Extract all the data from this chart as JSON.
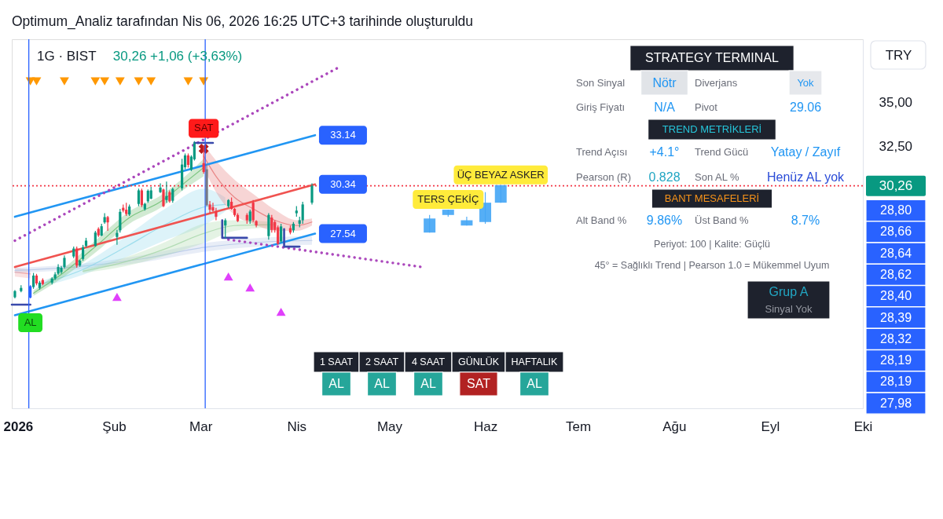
{
  "chart_data": {
    "type": "candlestick",
    "title": "Optimum_Analiz tarafından Nis 06, 2026 16:25 UTC+3 tarihinde oluşturuldu",
    "subtitle": "1G · BIST",
    "ylabel": "TRY",
    "x": [
      "2025-12-31",
      "2026-01-02",
      "2026-01-05",
      "2026-01-06",
      "2026-01-07",
      "2026-01-08",
      "2026-01-09",
      "2026-01-12",
      "2026-01-13",
      "2026-01-14",
      "2026-01-15",
      "2026-01-16",
      "2026-01-19",
      "2026-01-20",
      "2026-01-21",
      "2026-01-22",
      "2026-01-23",
      "2026-01-26",
      "2026-01-27",
      "2026-01-28",
      "2026-01-29",
      "2026-01-30",
      "2026-02-02",
      "2026-02-03",
      "2026-02-04",
      "2026-02-05",
      "2026-02-06",
      "2026-02-09",
      "2026-02-10",
      "2026-02-11",
      "2026-02-12",
      "2026-02-13",
      "2026-02-16",
      "2026-02-17",
      "2026-02-18",
      "2026-02-19",
      "2026-02-20",
      "2026-02-23",
      "2026-02-24",
      "2026-02-25",
      "2026-02-26",
      "2026-02-27",
      "2026-03-02",
      "2026-03-03",
      "2026-03-04",
      "2026-03-05",
      "2026-03-06",
      "2026-03-09",
      "2026-03-10",
      "2026-03-11",
      "2026-03-12",
      "2026-03-13",
      "2026-03-16",
      "2026-03-17",
      "2026-03-18",
      "2026-03-19",
      "2026-03-23",
      "2026-03-24",
      "2026-03-25",
      "2026-03-26",
      "2026-03-27",
      "2026-03-30",
      "2026-03-31",
      "2026-04-01",
      "2026-04-02",
      "2026-04-03",
      "2026-04-06"
    ],
    "ohlc": [
      [
        23.92,
        24.32,
        23.85,
        24.27
      ],
      [
        24.27,
        24.6,
        24.2,
        24.45
      ],
      [
        24.55,
        24.6,
        23.85,
        23.9
      ],
      [
        24.5,
        25.3,
        24.4,
        25.15
      ],
      [
        25.15,
        25.25,
        24.6,
        24.7
      ],
      [
        24.45,
        24.85,
        24.35,
        24.75
      ],
      [
        24.9,
        25.0,
        24.6,
        24.67
      ],
      [
        24.75,
        25.05,
        24.65,
        24.98
      ],
      [
        24.99,
        25.35,
        24.9,
        25.22
      ],
      [
        25.27,
        25.8,
        25.2,
        25.64
      ],
      [
        25.35,
        25.7,
        25.25,
        25.6
      ],
      [
        25.64,
        26.3,
        25.55,
        26.16
      ],
      [
        26.24,
        26.8,
        26.15,
        26.69
      ],
      [
        26.69,
        26.8,
        25.6,
        25.72
      ],
      [
        25.72,
        26.05,
        25.65,
        26.0
      ],
      [
        26.1,
        26.9,
        26.0,
        26.76
      ],
      [
        26.84,
        27.3,
        26.75,
        27.14
      ],
      [
        26.84,
        27.7,
        26.8,
        27.6
      ],
      [
        27.81,
        27.9,
        27.35,
        27.44
      ],
      [
        27.43,
        28.1,
        27.4,
        27.96
      ],
      [
        28.18,
        28.7,
        28.1,
        28.48
      ],
      [
        28.48,
        28.55,
        27.7,
        28.18
      ],
      [
        27.35,
        27.75,
        26.9,
        27.58
      ],
      [
        27.73,
        28.95,
        27.6,
        28.78
      ],
      [
        29.01,
        29.2,
        28.75,
        28.85
      ],
      [
        28.9,
        29.3,
        28.55,
        28.66
      ],
      [
        28.63,
        29.2,
        28.55,
        29.08
      ],
      [
        29.23,
        30.1,
        29.1,
        30.0
      ],
      [
        30.0,
        30.1,
        29.05,
        29.16
      ],
      [
        28.93,
        29.3,
        28.85,
        29.23
      ],
      [
        29.38,
        30.05,
        29.3,
        29.98
      ],
      [
        29.53,
        30.2,
        29.5,
        30.0
      ],
      [
        29.9,
        30.4,
        29.85,
        30.16
      ],
      [
        30.05,
        30.1,
        29.05,
        29.1
      ],
      [
        29.45,
        30.5,
        29.3,
        29.68
      ],
      [
        29.9,
        30.0,
        29.3,
        29.38
      ],
      [
        29.41,
        30.15,
        29.3,
        30.08
      ],
      [
        30.12,
        31.8,
        30.0,
        31.47
      ],
      [
        31.32,
        32.1,
        31.2,
        31.99
      ],
      [
        31.99,
        32.1,
        31.3,
        31.45
      ],
      [
        31.17,
        32.0,
        31.1,
        31.92
      ],
      [
        31.77,
        32.8,
        31.7,
        32.67
      ],
      [
        31.55,
        32.55,
        30.95,
        31.05
      ],
      [
        31.2,
        31.5,
        29.1,
        29.15
      ],
      [
        29.2,
        29.4,
        28.7,
        28.9
      ],
      [
        29.05,
        29.3,
        28.8,
        28.85
      ],
      [
        28.8,
        29.0,
        28.3,
        28.5
      ],
      [
        28.0,
        28.4,
        27.3,
        28.3
      ],
      [
        29.1,
        29.5,
        29.0,
        29.45
      ],
      [
        29.35,
        29.6,
        28.9,
        28.95
      ],
      [
        28.95,
        29.0,
        28.5,
        28.6
      ],
      [
        28.6,
        28.7,
        28.2,
        28.25
      ],
      [
        28.6,
        28.7,
        28.1,
        28.3
      ],
      [
        28.25,
        28.9,
        28.1,
        28.8
      ],
      [
        29.3,
        29.45,
        28.2,
        28.3
      ],
      [
        28.25,
        28.3,
        27.9,
        28.0
      ],
      [
        27.4,
        28.7,
        27.2,
        28.6
      ],
      [
        28.45,
        28.6,
        27.6,
        27.75
      ],
      [
        28.2,
        28.3,
        27.6,
        27.75
      ],
      [
        27.9,
        28.0,
        26.9,
        26.95
      ],
      [
        27.1,
        28.1,
        27.0,
        27.95
      ],
      [
        27.85,
        28.0,
        27.5,
        27.6
      ],
      [
        27.73,
        28.2,
        27.6,
        28.1
      ],
      [
        28.7,
        29.1,
        28.5,
        28.85
      ],
      [
        28.1,
        28.5,
        27.9,
        28.3
      ],
      [
        28.3,
        29.35,
        28.1,
        29.2
      ],
      [
        29.3,
        30.4,
        29.2,
        30.26
      ]
    ],
    "colors": [
      "#089981",
      "#089981",
      "#2962ff",
      "#089981",
      "#f23645",
      "#089981",
      "#f23645",
      "#089981",
      "#089981",
      "#089981",
      "#089981",
      "#089981",
      "#089981",
      "#f23645",
      "#089981",
      "#089981",
      "#089981",
      "#089981",
      "#f23645",
      "#089981",
      "#089981",
      "#f23645",
      "#089981",
      "#089981",
      "#f23645",
      "#f23645",
      "#089981",
      "#089981",
      "#f23645",
      "#089981",
      "#089981",
      "#089981",
      "#089981",
      "#f23645",
      "#089981",
      "#f23645",
      "#089981",
      "#089981",
      "#089981",
      "#f23645",
      "#089981",
      "#089981",
      "#f23645",
      "#787b86",
      "#f23645",
      "#f23645",
      "#f23645",
      "#089981",
      "#089981",
      "#f23645",
      "#f23645",
      "#f23645",
      "#f23645",
      "#089981",
      "#f23645",
      "#f23645",
      "#089981",
      "#f23645",
      "#f23645",
      "#f23645",
      "#089981",
      "#f23645",
      "#089981",
      "#089981",
      "#089981",
      "#089981",
      "#089981"
    ],
    "series": [
      {
        "type": "line",
        "x": [
          "2025-12-31",
          "2026-01-05"
        ],
        "values": [
          25.35,
          25.25
        ],
        "lower": [
          25.1,
          25.0
        ],
        "upper": [
          25.6,
          25.5
        ],
        "color": "#ef9a9a"
      },
      {
        "type": "line",
        "x": [
          "2025-12-31",
          "2026-01-20",
          "2026-02-10",
          "2026-03-02",
          "2026-03-20",
          "2026-04-06"
        ],
        "values": [
          25.45,
          25.65,
          26.1,
          26.75,
          27.05,
          27.15
        ],
        "lower": [
          25.3,
          25.5,
          25.9,
          26.5,
          26.8,
          26.9
        ],
        "upper": [
          25.6,
          25.8,
          26.3,
          27.0,
          27.3,
          27.4
        ],
        "color": "#b3c5e6"
      },
      {
        "type": "line",
        "x": [
          "2026-01-08",
          "2026-01-22",
          "2026-02-05",
          "2026-02-18",
          "2026-03-02",
          "2026-03-09"
        ],
        "values": [
          24.65,
          25.5,
          26.8,
          28.1,
          29.05,
          29.2
        ],
        "lower": [
          24.5,
          25.2,
          26.2,
          27.2,
          28.0,
          28.8
        ],
        "upper": [
          24.8,
          25.8,
          27.4,
          29.0,
          30.1,
          29.6
        ],
        "color": "#8fd8ea"
      },
      {
        "type": "line",
        "x": [
          "2026-01-22",
          "2026-02-05",
          "2026-02-18",
          "2026-03-02",
          "2026-03-12",
          "2026-03-25"
        ],
        "values": [
          25.4,
          25.95,
          26.7,
          27.55,
          28.0,
          28.05
        ],
        "lower": [
          25.3,
          25.7,
          26.3,
          27.0,
          27.7,
          27.9
        ],
        "upper": [
          25.5,
          26.2,
          27.1,
          28.1,
          28.3,
          28.2
        ],
        "color": "#a5d6a7"
      },
      {
        "type": "line",
        "x": [
          "2026-01-06",
          "2026-01-16",
          "2026-01-27",
          "2026-02-06",
          "2026-02-16",
          "2026-02-24",
          "2026-03-02"
        ],
        "values": [
          24.15,
          25.35,
          26.95,
          28.45,
          29.35,
          30.45,
          31.3
        ],
        "lower": [
          24.0,
          25.1,
          26.6,
          28.1,
          29.0,
          30.1,
          30.8
        ],
        "upper": [
          24.3,
          25.6,
          27.3,
          28.8,
          29.7,
          30.8,
          31.8
        ],
        "color": "#66bb6a"
      },
      {
        "type": "line",
        "x": [
          "2026-03-02",
          "2026-03-06",
          "2026-03-12",
          "2026-03-18",
          "2026-03-25",
          "2026-04-01",
          "2026-04-06"
        ],
        "values": [
          31.95,
          30.8,
          29.6,
          28.95,
          28.3,
          28.0,
          28.2
        ],
        "lower": [
          31.3,
          29.9,
          28.6,
          28.1,
          27.7,
          27.7,
          28.0
        ],
        "upper": [
          32.6,
          31.7,
          30.6,
          29.8,
          28.9,
          28.3,
          28.4
        ],
        "color": "#e57373"
      },
      {
        "type": "line",
        "x": [
          "2025-12-31",
          "2026-04-07"
        ],
        "values": [
          28.5,
          33.14
        ],
        "color": "#2196f3"
      },
      {
        "type": "line",
        "x": [
          "2025-12-31",
          "2026-04-07"
        ],
        "values": [
          25.64,
          30.34
        ],
        "color": "#f05350"
      },
      {
        "type": "line",
        "x": [
          "2025-12-31",
          "2026-04-07"
        ],
        "values": [
          22.9,
          27.54
        ],
        "color": "#2196f3"
      },
      {
        "type": "line",
        "x": [
          "2025-12-31",
          "2026-04-14"
        ],
        "values": [
          27.14,
          36.94
        ],
        "color": "#ab47bc",
        "line_style": "dotted"
      },
      {
        "type": "line",
        "x": [
          "2026-03-10",
          "2026-05-11"
        ],
        "values": [
          27.2,
          25.65
        ],
        "color": "#ab47bc",
        "line_style": "dotted"
      },
      {
        "type": "line",
        "x": [
          "2025-12-30",
          "2026-01-05"
        ],
        "values": [
          23.5,
          23.5
        ],
        "color": "#3949ab"
      },
      {
        "type": "line",
        "x": [
          "2026-02-27",
          "2026-03-05"
        ],
        "values": [
          32.7,
          32.7
        ],
        "color": "#3949ab"
      },
      {
        "type": "line",
        "x": [
          "2026-03-08",
          "2026-03-08",
          "2026-03-16"
        ],
        "values": [
          28.3,
          27.3,
          27.3
        ],
        "color": "#3949ab"
      },
      {
        "type": "line",
        "x": [
          "2026-03-28",
          "2026-03-28",
          "2026-04-02"
        ],
        "values": [
          27.8,
          26.8,
          26.8
        ],
        "color": "#3949ab"
      },
      {
        "type": "scatter",
        "x": [
          "2026-01-05",
          "2026-01-07",
          "2026-01-16",
          "2026-01-26",
          "2026-01-29",
          "2026-02-03",
          "2026-02-09",
          "2026-02-13",
          "2026-02-25",
          "2026-03-02"
        ],
        "values": [
          36.2,
          36.2,
          36.2,
          36.2,
          36.2,
          36.2,
          36.2,
          36.2,
          36.2,
          36.2
        ],
        "color": "#ff9800",
        "marker": "triangle"
      },
      {
        "type": "scatter",
        "x": [
          "2026-02-02",
          "2026-03-10",
          "2026-03-17",
          "2026-03-27"
        ],
        "values": [
          23.94,
          25.1,
          24.48,
          23.09
        ],
        "color": "#e040fb",
        "marker": "triangle"
      },
      {
        "type": "scatter",
        "x": [
          "2026-03-02"
        ],
        "values": [
          32.37
        ],
        "color": "#b71c1c",
        "marker": "cross"
      },
      {
        "type": "candlestick",
        "x": [
          "2026-05-14",
          "2026-05-20",
          "2026-05-26",
          "2026-06-01",
          "2026-06-06"
        ],
        "ohlc": [
          [
            27.6,
            28.6,
            27.6,
            28.4
          ],
          [
            28.6,
            28.9,
            28.5,
            28.9
          ],
          [
            28.0,
            28.5,
            28.0,
            28.3
          ],
          [
            28.2,
            29.9,
            28.1,
            29.3
          ],
          [
            29.3,
            30.3,
            29.3,
            30.3
          ]
        ],
        "color": "#42a5f5"
      }
    ],
    "ref_lines": [
      {
        "axis": "y",
        "value": 30.26,
        "label": "30,26",
        "color": "#f23645",
        "line_style": "dotted"
      },
      {
        "axis": "x",
        "value": "2026-01-04T12:00",
        "color": "#2962ff"
      },
      {
        "axis": "x",
        "value": "2026-03-02T12:00",
        "color": "#2962ff"
      }
    ],
    "xlim": [
      "2025-12-30",
      "2026-10-01"
    ],
    "xticks": [
      {
        "value": "2026-01-01",
        "label": "2026"
      },
      {
        "value": "2026-02-01",
        "label": "Şub"
      },
      {
        "value": "2026-03-01",
        "label": "Mar"
      },
      {
        "value": "2026-04-01",
        "label": "Nis"
      },
      {
        "value": "2026-05-01",
        "label": "May"
      },
      {
        "value": "2026-06-01",
        "label": "Haz"
      },
      {
        "value": "2026-07-01",
        "label": "Tem"
      },
      {
        "value": "2026-08-01",
        "label": "Ağu"
      },
      {
        "value": "2026-09-01",
        "label": "Eyl"
      },
      {
        "value": "2026-10-01",
        "label": "Eki"
      }
    ],
    "ylim": [
      17.6,
      38.6
    ],
    "yticks": [
      {
        "value": 35,
        "label": "35,00"
      },
      {
        "value": 32.5,
        "label": "32,50"
      }
    ],
    "annotations": [
      "30,26 +1,06 (+3,63%)",
      "STRATEGY TERMINAL",
      "Son Sinyal",
      "Nötr",
      "Diverjans",
      "Yok",
      "Giriş Fiyatı",
      "N/A",
      "Pivot",
      "29.06",
      "TREND METRİKLERİ",
      "Trend Açısı",
      "+4.1°",
      "Trend Gücü",
      "Yatay / Zayıf",
      "Pearson (R)",
      "0.828",
      "Son AL %",
      "Henüz AL yok",
      "BANT MESAFELERİ",
      "Alt Band %",
      "9.86%",
      "Üst Band %",
      "8.7%",
      "Periyot: 100 | Kalite: Güçlü",
      "45° = Sağlıklı Trend | Pearson 1.0 = Mükemmel Uyum",
      "Grup A",
      "Sinyal Yok",
      "1 SAAT",
      "2 SAAT",
      "4 SAAT",
      "GÜNLÜK",
      "HAFTALIK",
      "AL",
      "AL",
      "AL",
      "SAT",
      "AL",
      "28,80",
      "28,66",
      "28,64",
      "28,62",
      "28,40",
      "28,39",
      "28,32",
      "28,19",
      "28,19",
      "27,98",
      {
        "text": "SAT",
        "x": "2026-03-02",
        "y": 32.55
      },
      {
        "text": "AL",
        "x": "2026-01-05",
        "y": 23.85
      },
      {
        "text": "33.14",
        "x": "2026-04-07",
        "y": 33.14
      },
      {
        "text": "30.34",
        "x": "2026-04-07",
        "y": 30.34
      },
      {
        "text": "27.54",
        "x": "2026-04-07",
        "y": 27.54
      },
      {
        "text": "TERS ÇEKİÇ",
        "x": "2026-05-20",
        "y": 28.9
      },
      {
        "text": "ÜÇ BEYAZ ASKER",
        "x": "2026-06-06",
        "y": 30.3
      }
    ]
  }
}
